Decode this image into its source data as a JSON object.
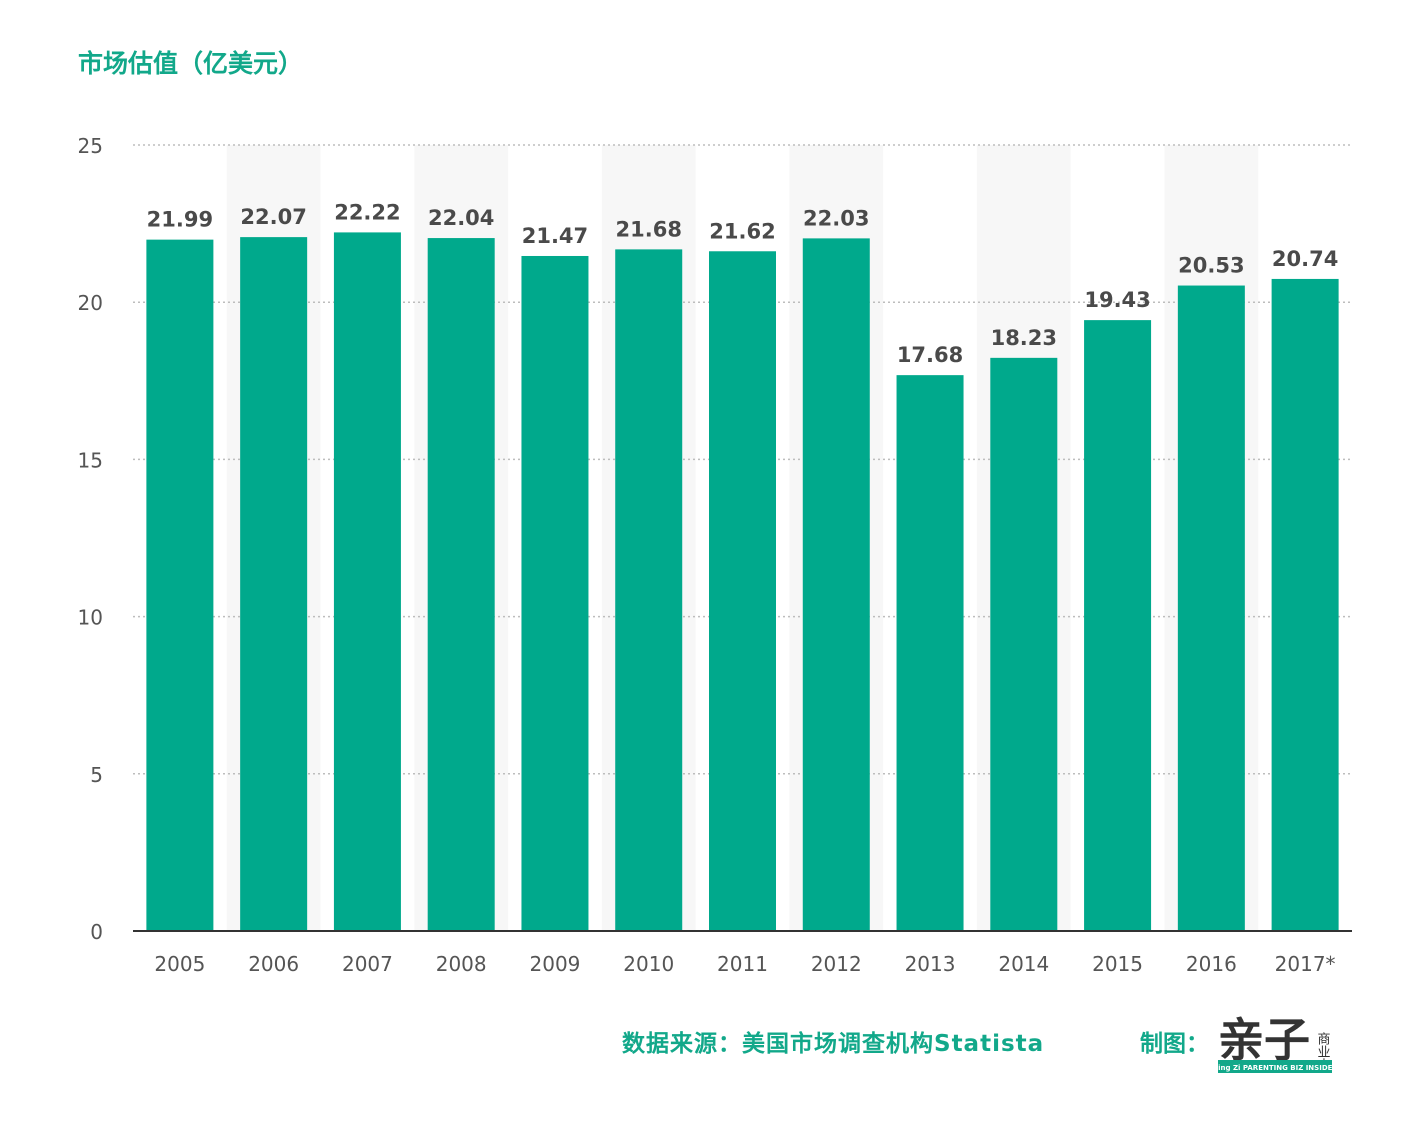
{
  "title": "市场估值（亿美元）",
  "source": "数据来源：美国市场调查机构Statista",
  "credit": "制图：",
  "logo": {
    "main": "亲子",
    "side": "商业志",
    "band": "Qing Zi PARENTING BIZ INSIDER"
  },
  "colors": {
    "bar": "#00a98c",
    "accent": "#12a88a",
    "label": "#4a4a4a",
    "tick": "#555555",
    "grid": "#bdbdbd",
    "stripe": "#f7f7f7"
  },
  "chart_data": {
    "type": "bar",
    "categories": [
      "2005",
      "2006",
      "2007",
      "2008",
      "2009",
      "2010",
      "2011",
      "2012",
      "2013",
      "2014",
      "2015",
      "2016",
      "2017*"
    ],
    "values": [
      21.99,
      22.07,
      22.22,
      22.04,
      21.47,
      21.68,
      21.62,
      22.03,
      17.68,
      18.23,
      19.43,
      20.53,
      20.74
    ],
    "value_labels": [
      "21.99",
      "22.07",
      "22.22",
      "22.04",
      "21.47",
      "21.68",
      "21.62",
      "22.03",
      "17.68",
      "18.23",
      "19.43",
      "20.53",
      "20.74"
    ],
    "ylim": [
      0,
      25
    ],
    "yticks": [
      0,
      5,
      10,
      15,
      20,
      25
    ],
    "grid": true,
    "legend": "none"
  }
}
